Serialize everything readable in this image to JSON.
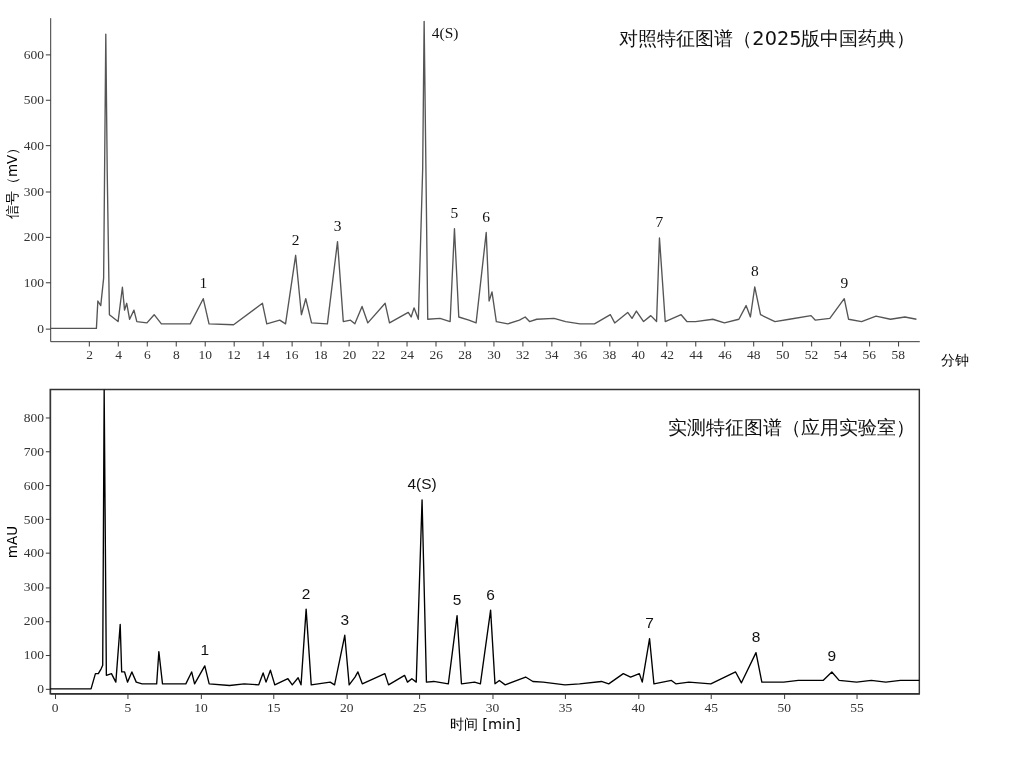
{
  "chart_data": [
    {
      "type": "line",
      "title": "对照特征图谱（2025版中国药典）",
      "xlabel": "分钟",
      "ylabel": "信号（mV）",
      "grid": false,
      "legend": false,
      "marker": "none",
      "line_style": "solid",
      "xlim": [
        -0.7,
        59.5
      ],
      "ylim": [
        -28,
        680
      ],
      "xticks": [
        2,
        4,
        6,
        8,
        10,
        12,
        14,
        16,
        18,
        20,
        22,
        24,
        26,
        28,
        30,
        32,
        34,
        36,
        38,
        40,
        42,
        44,
        46,
        48,
        50,
        52,
        54,
        56,
        58
      ],
      "yticks": [
        0,
        100,
        200,
        300,
        400,
        500,
        600
      ],
      "x": [
        -0.7,
        2.5,
        2.6,
        2.8,
        3.0,
        3.15,
        3.25,
        3.4,
        4.0,
        4.3,
        4.45,
        4.6,
        4.8,
        5.1,
        5.3,
        6.0,
        6.5,
        7,
        8,
        9,
        9.9,
        10.3,
        12,
        14,
        14.3,
        15.2,
        15.6,
        16.3,
        16.7,
        17.0,
        17.4,
        18.5,
        19.2,
        19.6,
        20.1,
        20.4,
        20.9,
        21.3,
        22.5,
        22.8,
        24.1,
        24.3,
        24.5,
        24.8,
        25.1,
        25.2,
        25.45,
        26.3,
        27.0,
        27.3,
        27.6,
        28.3,
        28.8,
        29.5,
        29.7,
        29.9,
        30.2,
        31,
        31.8,
        32.2,
        32.5,
        33,
        34.2,
        35,
        36,
        37,
        38.1,
        38.4,
        39.3,
        39.6,
        39.9,
        40.4,
        40.9,
        41.3,
        41.5,
        41.9,
        43,
        43.4,
        44,
        45.2,
        46,
        47,
        47.5,
        47.8,
        48.1,
        48.5,
        49.5,
        50.5,
        52,
        52.3,
        53.3,
        54.3,
        54.6,
        55.5,
        56.5,
        57.5,
        58.5,
        59.3
      ],
      "series": [
        {
          "color": "#555555",
          "values": [
            0,
            0,
            60,
            50,
            110,
            644,
            340,
            30,
            15,
            90,
            40,
            55,
            20,
            40,
            15,
            12,
            30,
            10,
            10,
            10,
            65,
            10,
            8,
            55,
            10,
            18,
            10,
            160,
            30,
            65,
            12,
            10,
            190,
            15,
            18,
            10,
            48,
            12,
            55,
            12,
            35,
            25,
            45,
            20,
            350,
            672,
            20,
            22,
            15,
            218,
            25,
            18,
            12,
            210,
            60,
            80,
            15,
            10,
            18,
            25,
            15,
            20,
            22,
            15,
            10,
            10,
            30,
            12,
            35,
            22,
            38,
            15,
            28,
            15,
            198,
            15,
            30,
            15,
            15,
            20,
            12,
            20,
            50,
            25,
            91,
            30,
            15,
            20,
            28,
            18,
            22,
            65,
            20,
            15,
            27,
            20,
            25,
            20
          ]
        }
      ],
      "annotations": [
        {
          "text": "1",
          "x": 9.9,
          "y": 65
        },
        {
          "text": "2",
          "x": 16.3,
          "y": 160
        },
        {
          "text": "3",
          "x": 19.2,
          "y": 190
        },
        {
          "text": "4(S)",
          "x": 25.2,
          "y": 672
        },
        {
          "text": "5",
          "x": 27.3,
          "y": 218
        },
        {
          "text": "6",
          "x": 29.5,
          "y": 210
        },
        {
          "text": "7",
          "x": 41.5,
          "y": 198
        },
        {
          "text": "8",
          "x": 48.1,
          "y": 91
        },
        {
          "text": "9",
          "x": 54.3,
          "y": 65
        }
      ]
    },
    {
      "type": "line",
      "title": "实测特征图谱（应用实验室）",
      "xlabel": "时间 [min]",
      "ylabel": "mAU",
      "grid": false,
      "legend": false,
      "marker": "none",
      "line_style": "solid",
      "xlim": [
        -0.3,
        59.3
      ],
      "ylim": [
        -14,
        882
      ],
      "xticks": [
        0,
        5,
        10,
        15,
        20,
        25,
        30,
        35,
        40,
        45,
        50,
        55
      ],
      "yticks": [
        0,
        100,
        200,
        300,
        400,
        500,
        600,
        700,
        800
      ],
      "x": [
        -0.3,
        2.5,
        2.8,
        3.0,
        3.2,
        3.3,
        3.4,
        3.55,
        3.9,
        4.2,
        4.5,
        4.6,
        4.8,
        5.0,
        5.3,
        5.6,
        6,
        7.0,
        7.15,
        7.4,
        8.3,
        9,
        9.4,
        9.6,
        10.3,
        10.6,
        12,
        13,
        14,
        14.3,
        14.5,
        14.8,
        15.1,
        16.0,
        16.3,
        16.7,
        16.9,
        17.25,
        17.6,
        18.9,
        19.2,
        19.9,
        20.2,
        20.6,
        20.8,
        21.1,
        22.65,
        22.9,
        24.0,
        24.2,
        24.5,
        24.8,
        25.2,
        25.5,
        26,
        27,
        27.6,
        27.9,
        28.8,
        29.2,
        29.9,
        30.2,
        30.5,
        30.9,
        32.3,
        32.8,
        33.5,
        35,
        36,
        37.5,
        38,
        39,
        39.5,
        40.1,
        40.3,
        40.8,
        41.1,
        42.3,
        42.6,
        43.5,
        45,
        46.7,
        47.1,
        48.1,
        48.5,
        50,
        51,
        52.7,
        53.3,
        53.8,
        55,
        56,
        57,
        58,
        59.3
      ],
      "series": [
        {
          "color": "#000000",
          "values": [
            0,
            0,
            45,
            45,
            60,
            70,
            880,
            40,
            45,
            20,
            190,
            50,
            50,
            20,
            50,
            20,
            15,
            15,
            110,
            15,
            15,
            15,
            50,
            15,
            68,
            15,
            10,
            15,
            12,
            47,
            20,
            55,
            12,
            30,
            12,
            33,
            12,
            235,
            12,
            20,
            12,
            158,
            12,
            35,
            50,
            15,
            45,
            12,
            40,
            20,
            30,
            20,
            557,
            20,
            22,
            15,
            216,
            15,
            20,
            15,
            232,
            15,
            25,
            12,
            35,
            22,
            20,
            12,
            15,
            22,
            15,
            45,
            35,
            45,
            20,
            148,
            15,
            25,
            15,
            20,
            15,
            50,
            18,
            107,
            20,
            20,
            25,
            25,
            50,
            25,
            20,
            25,
            20,
            25,
            25
          ]
        }
      ],
      "annotations": [
        {
          "text": "1",
          "x": 10.3,
          "y": 68
        },
        {
          "text": "2",
          "x": 17.25,
          "y": 235
        },
        {
          "text": "3",
          "x": 19.9,
          "y": 158
        },
        {
          "text": "4(S)",
          "x": 25.2,
          "y": 557
        },
        {
          "text": "5",
          "x": 27.6,
          "y": 216
        },
        {
          "text": "6",
          "x": 29.9,
          "y": 232
        },
        {
          "text": "7",
          "x": 40.8,
          "y": 148
        },
        {
          "text": "8",
          "x": 48.1,
          "y": 107
        },
        {
          "text": "9",
          "x": 53.3,
          "y": 50
        }
      ]
    }
  ]
}
